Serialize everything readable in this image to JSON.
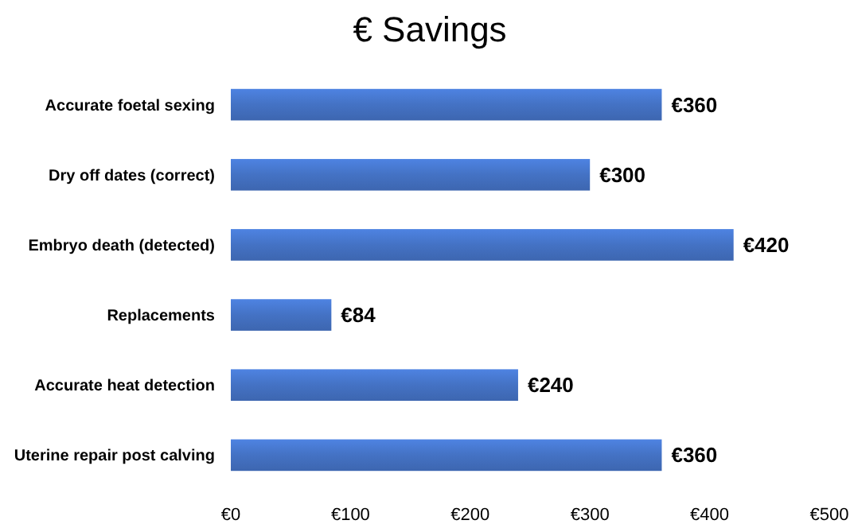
{
  "chart_data": {
    "type": "bar",
    "orientation": "horizontal",
    "title": "€ Savings",
    "categories": [
      "Accurate foetal sexing",
      "Dry off dates (correct)",
      "Embryo death (detected)",
      "Replacements",
      "Accurate heat detection",
      "Uterine repair post calving"
    ],
    "values": [
      360,
      300,
      420,
      84,
      240,
      360
    ],
    "value_labels": [
      "€360",
      "€300",
      "€420",
      "€84",
      "€240",
      "€360"
    ],
    "color": "#4472c4",
    "xlim": [
      0,
      500
    ],
    "xticks": [
      {
        "value": 0,
        "label": "€0"
      },
      {
        "value": 100,
        "label": "€100"
      },
      {
        "value": 200,
        "label": "€200"
      },
      {
        "value": 300,
        "label": "€300"
      },
      {
        "value": 400,
        "label": "€400"
      },
      {
        "value": 500,
        "label": "€500"
      }
    ],
    "grid": false
  }
}
